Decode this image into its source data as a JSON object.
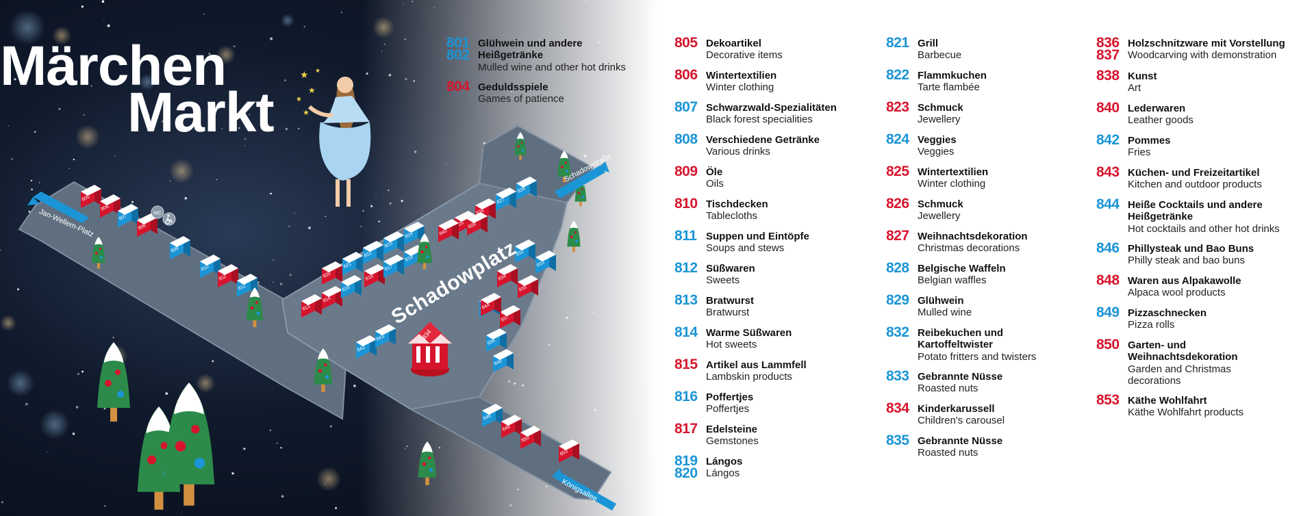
{
  "colors": {
    "red": "#d6152d",
    "blue": "#1b95d6",
    "road": "#5f6f80",
    "night": "#0b1322"
  },
  "map": {
    "title_line1": "Märchen",
    "title_line2": "Markt",
    "place_name": "Schadowplatz",
    "streets": {
      "left": "Jan-Wellem-Platz",
      "top_right": "Schadowstraße",
      "bottom_right": "Königsallee"
    },
    "toilet_icon_label": "WC",
    "accessible_icon": "wheelchair-icon",
    "stall_numbers": [
      "805",
      "806",
      "807",
      "808",
      "809",
      "810",
      "811",
      "812",
      "813",
      "814",
      "815",
      "816",
      "817",
      "819",
      "820",
      "821",
      "822",
      "823",
      "824",
      "825",
      "826",
      "827",
      "828",
      "829",
      "832",
      "833",
      "834",
      "835",
      "836",
      "837",
      "838",
      "840",
      "842",
      "843",
      "844",
      "846",
      "848",
      "849",
      "850",
      "853"
    ]
  },
  "legend": {
    "col1": [
      {
        "nums": [
          {
            "n": "801",
            "c": "blue"
          },
          {
            "n": "802",
            "c": "blue"
          }
        ],
        "de": "Glühwein und andere Heißgetränke",
        "en": "Mulled wine and other hot drinks"
      },
      {
        "nums": [
          {
            "n": "804",
            "c": "red"
          }
        ],
        "de": "Geduldsspiele",
        "en": "Games of patience"
      }
    ],
    "col2": [
      {
        "nums": [
          {
            "n": "805",
            "c": "red"
          }
        ],
        "de": "Dekoartikel",
        "en": "Decorative items"
      },
      {
        "nums": [
          {
            "n": "806",
            "c": "red"
          }
        ],
        "de": "Wintertextilien",
        "en": "Winter clothing"
      },
      {
        "nums": [
          {
            "n": "807",
            "c": "blue"
          }
        ],
        "de": "Schwarzwald-Spezialitäten",
        "en": "Black forest specialities"
      },
      {
        "nums": [
          {
            "n": "808",
            "c": "blue"
          }
        ],
        "de": "Verschiedene Getränke",
        "en": "Various drinks"
      },
      {
        "nums": [
          {
            "n": "809",
            "c": "red"
          }
        ],
        "de": "Öle",
        "en": "Oils"
      },
      {
        "nums": [
          {
            "n": "810",
            "c": "red"
          }
        ],
        "de": "Tischdecken",
        "en": "Tablecloths"
      },
      {
        "nums": [
          {
            "n": "811",
            "c": "blue"
          }
        ],
        "de": "Suppen und Eintöpfe",
        "en": "Soups and stews"
      },
      {
        "nums": [
          {
            "n": "812",
            "c": "blue"
          }
        ],
        "de": "Süßwaren",
        "en": "Sweets"
      },
      {
        "nums": [
          {
            "n": "813",
            "c": "blue"
          }
        ],
        "de": "Bratwurst",
        "en": "Bratwurst"
      },
      {
        "nums": [
          {
            "n": "814",
            "c": "blue"
          }
        ],
        "de": "Warme Süßwaren",
        "en": "Hot sweets"
      },
      {
        "nums": [
          {
            "n": "815",
            "c": "red"
          }
        ],
        "de": "Artikel aus Lammfell",
        "en": "Lambskin products"
      },
      {
        "nums": [
          {
            "n": "816",
            "c": "blue"
          }
        ],
        "de": "Poffertjes",
        "en": "Poffertjes"
      },
      {
        "nums": [
          {
            "n": "817",
            "c": "red"
          }
        ],
        "de": "Edelsteine",
        "en": "Gemstones"
      },
      {
        "nums": [
          {
            "n": "819",
            "c": "blue"
          },
          {
            "n": "820",
            "c": "blue"
          }
        ],
        "de": "Lángos",
        "en": "Lángos"
      }
    ],
    "col3": [
      {
        "nums": [
          {
            "n": "821",
            "c": "blue"
          }
        ],
        "de": "Grill",
        "en": "Barbecue"
      },
      {
        "nums": [
          {
            "n": "822",
            "c": "blue"
          }
        ],
        "de": "Flammkuchen",
        "en": "Tarte flambée"
      },
      {
        "nums": [
          {
            "n": "823",
            "c": "red"
          }
        ],
        "de": "Schmuck",
        "en": "Jewellery"
      },
      {
        "nums": [
          {
            "n": "824",
            "c": "blue"
          }
        ],
        "de": "Veggies",
        "en": "Veggies"
      },
      {
        "nums": [
          {
            "n": "825",
            "c": "red"
          }
        ],
        "de": "Wintertextilien",
        "en": "Winter clothing"
      },
      {
        "nums": [
          {
            "n": "826",
            "c": "red"
          }
        ],
        "de": "Schmuck",
        "en": "Jewellery"
      },
      {
        "nums": [
          {
            "n": "827",
            "c": "red"
          }
        ],
        "de": "Weihnachtsdekoration",
        "en": "Christmas decorations"
      },
      {
        "nums": [
          {
            "n": "828",
            "c": "blue"
          }
        ],
        "de": "Belgische Waffeln",
        "en": "Belgian waffles"
      },
      {
        "nums": [
          {
            "n": "829",
            "c": "blue"
          }
        ],
        "de": "Glühwein",
        "en": "Mulled wine"
      },
      {
        "nums": [
          {
            "n": "832",
            "c": "blue"
          }
        ],
        "de": "Reibekuchen und Kartoffeltwister",
        "en": "Potato fritters and twisters"
      },
      {
        "nums": [
          {
            "n": "833",
            "c": "blue"
          }
        ],
        "de": "Gebrannte Nüsse",
        "en": "Roasted nuts"
      },
      {
        "nums": [
          {
            "n": "834",
            "c": "red"
          }
        ],
        "de": "Kinderkarussell",
        "en": "Children's carousel"
      },
      {
        "nums": [
          {
            "n": "835",
            "c": "blue"
          }
        ],
        "de": "Gebrannte Nüsse",
        "en": "Roasted nuts"
      }
    ],
    "col4": [
      {
        "nums": [
          {
            "n": "836",
            "c": "red"
          },
          {
            "n": "837",
            "c": "red"
          }
        ],
        "de": "Holzschnitzware mit Vorstellung",
        "en": "Woodcarving with demonstration"
      },
      {
        "nums": [
          {
            "n": "838",
            "c": "red"
          }
        ],
        "de": "Kunst",
        "en": "Art"
      },
      {
        "nums": [
          {
            "n": "840",
            "c": "red"
          }
        ],
        "de": "Lederwaren",
        "en": "Leather goods"
      },
      {
        "nums": [
          {
            "n": "842",
            "c": "blue"
          }
        ],
        "de": "Pommes",
        "en": "Fries"
      },
      {
        "nums": [
          {
            "n": "843",
            "c": "red"
          }
        ],
        "de": "Küchen- und Freizeitartikel",
        "en": "Kitchen and outdoor products"
      },
      {
        "nums": [
          {
            "n": "844",
            "c": "blue"
          }
        ],
        "de": "Heiße Cocktails und andere Heißgetränke",
        "en": "Hot cocktails and other hot drinks"
      },
      {
        "nums": [
          {
            "n": "846",
            "c": "blue"
          }
        ],
        "de": "Phillysteak und Bao Buns",
        "en": "Philly steak and bao buns"
      },
      {
        "nums": [
          {
            "n": "848",
            "c": "red"
          }
        ],
        "de": "Waren aus Alpakawolle",
        "en": "Alpaca wool products"
      },
      {
        "nums": [
          {
            "n": "849",
            "c": "blue"
          }
        ],
        "de": "Pizzaschnecken",
        "en": "Pizza rolls"
      },
      {
        "nums": [
          {
            "n": "850",
            "c": "red"
          }
        ],
        "de": "Garten- und Weihnachtsdekoration",
        "en": "Garden and Christmas decorations"
      },
      {
        "nums": [
          {
            "n": "853",
            "c": "red"
          }
        ],
        "de": "Käthe Wohlfahrt",
        "en": "Käthe Wohlfahrt products"
      }
    ]
  }
}
